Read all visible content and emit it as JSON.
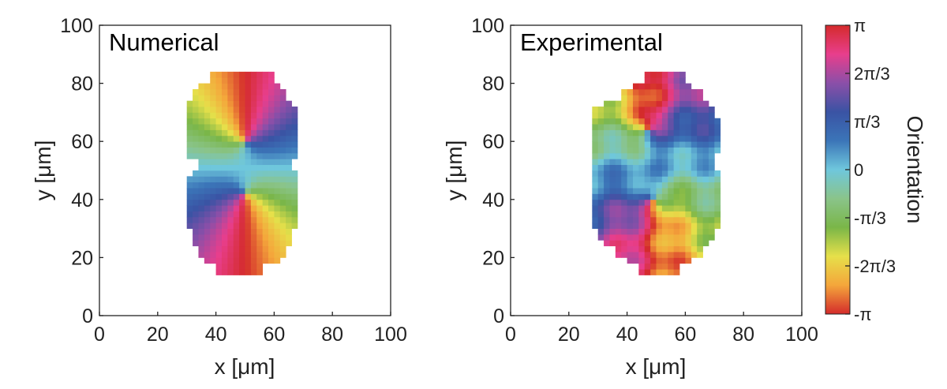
{
  "chart_data": [
    {
      "type": "heatmap",
      "title": "Numerical",
      "xlabel": "x [μm]",
      "ylabel": "y [μm]",
      "xlim": [
        0,
        100
      ],
      "ylim": [
        0,
        100
      ],
      "xticks": [
        "0",
        "20",
        "40",
        "60",
        "80",
        "100"
      ],
      "yticks": [
        "0",
        "20",
        "40",
        "60",
        "80",
        "100"
      ],
      "grid": false,
      "field": "orientation angle, two +1 defects (vortex) at (50, 60) and (50, 42)",
      "defects": [
        {
          "x": 50,
          "y": 60
        },
        {
          "x": 50,
          "y": 42
        }
      ],
      "domain_description": "peanut-shaped region spanning x 31–69 μm, y 15–84 μm"
    },
    {
      "type": "heatmap",
      "title": "Experimental",
      "xlabel": "x [μm]",
      "ylabel": "y [μm]",
      "xlim": [
        0,
        100
      ],
      "ylim": [
        0,
        100
      ],
      "xticks": [
        "0",
        "20",
        "40",
        "60",
        "80",
        "100"
      ],
      "yticks": [
        "0",
        "20",
        "40",
        "60",
        "80",
        "100"
      ],
      "grid": false,
      "field": "orientation angle, two +1 defects at approx (47, 64) and (49, 40)",
      "defects": [
        {
          "x": 47,
          "y": 64
        },
        {
          "x": 49,
          "y": 40
        }
      ],
      "domain_description": "peanut-shaped region spanning x 28–72 μm, y 15–84 μm"
    }
  ],
  "colorbar": {
    "label": "Orientation",
    "range": [
      -3.1416,
      3.1416
    ],
    "ticks": [
      "π",
      "2π/3",
      "π/3",
      "0",
      "-π/3",
      "-2π/3",
      "-π"
    ],
    "tick_values": [
      3.1416,
      2.0944,
      1.0472,
      0,
      -1.0472,
      -2.0944,
      -3.1416
    ],
    "colors": [
      "#d42b2b",
      "#e83e8c",
      "#8b4fa8",
      "#3a53a4",
      "#3b75b8",
      "#6fc7dc",
      "#8ac48a",
      "#7ab648",
      "#e6e04a",
      "#f4a63b",
      "#d42b2b"
    ]
  }
}
